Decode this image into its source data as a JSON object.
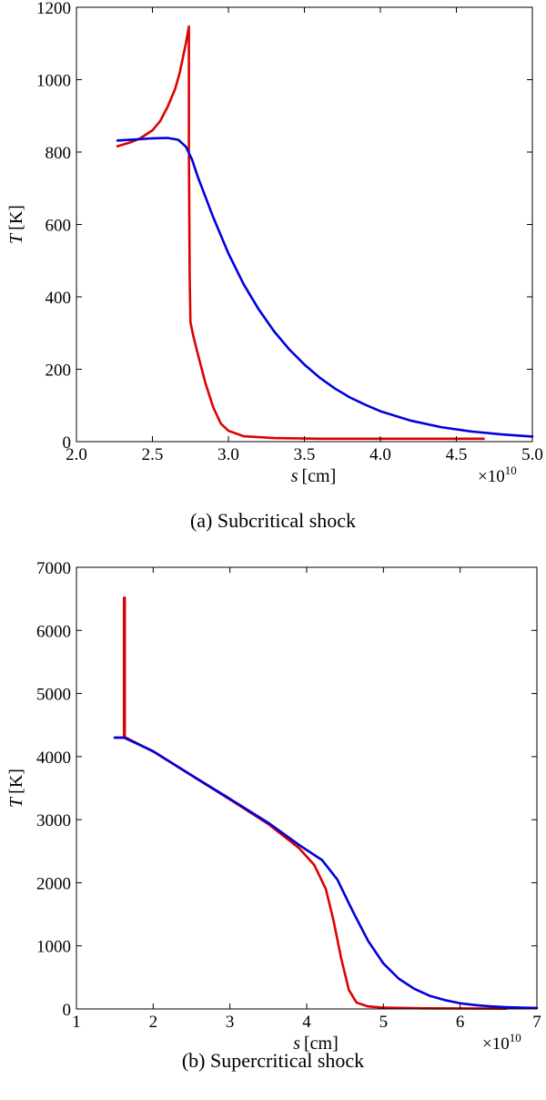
{
  "chart_data": [
    {
      "type": "line",
      "caption": "(a) Subcritical shock",
      "xlabel_var": "s",
      "xlabel_unit": "[cm]",
      "ylabel_var": "T",
      "ylabel_unit": "[K]",
      "x_multiplier": "×10",
      "x_multiplier_exp": "10",
      "xlim": [
        2.0,
        5.0
      ],
      "ylim": [
        0,
        1200
      ],
      "x_ticks": [
        "2.0",
        "2.5",
        "3.0",
        "3.5",
        "4.0",
        "4.5",
        "5.0"
      ],
      "y_ticks": [
        "0",
        "200",
        "400",
        "600",
        "800",
        "1000",
        "1200"
      ],
      "grid": false,
      "series": [
        {
          "color": "#dd0000",
          "points": [
            [
              2.27,
              816
            ],
            [
              2.35,
              826
            ],
            [
              2.42,
              838
            ],
            [
              2.5,
              860
            ],
            [
              2.55,
              885
            ],
            [
              2.6,
              925
            ],
            [
              2.65,
              975
            ],
            [
              2.68,
              1020
            ],
            [
              2.7,
              1060
            ],
            [
              2.72,
              1100
            ],
            [
              2.74,
              1147
            ],
            [
              2.74,
              800
            ],
            [
              2.745,
              460
            ],
            [
              2.75,
              330
            ],
            [
              2.77,
              290
            ],
            [
              2.8,
              240
            ],
            [
              2.85,
              160
            ],
            [
              2.9,
              95
            ],
            [
              2.95,
              50
            ],
            [
              3.0,
              30
            ],
            [
              3.1,
              15
            ],
            [
              3.3,
              10
            ],
            [
              3.6,
              8
            ],
            [
              4.0,
              8
            ],
            [
              4.4,
              8
            ],
            [
              4.68,
              8
            ]
          ]
        },
        {
          "color": "#0000dd",
          "points": [
            [
              2.27,
              832
            ],
            [
              2.4,
              835
            ],
            [
              2.5,
              838
            ],
            [
              2.6,
              839
            ],
            [
              2.67,
              834
            ],
            [
              2.72,
              815
            ],
            [
              2.76,
              780
            ],
            [
              2.8,
              730
            ],
            [
              2.9,
              620
            ],
            [
              3.0,
              520
            ],
            [
              3.1,
              435
            ],
            [
              3.2,
              365
            ],
            [
              3.3,
              305
            ],
            [
              3.4,
              255
            ],
            [
              3.5,
              213
            ],
            [
              3.6,
              177
            ],
            [
              3.7,
              147
            ],
            [
              3.8,
              122
            ],
            [
              3.9,
              102
            ],
            [
              4.0,
              84
            ],
            [
              4.2,
              58
            ],
            [
              4.4,
              40
            ],
            [
              4.6,
              28
            ],
            [
              4.8,
              20
            ],
            [
              5.0,
              14
            ]
          ]
        }
      ]
    },
    {
      "type": "line",
      "caption": "(b) Supercritical shock",
      "xlabel_var": "s",
      "xlabel_unit": "[cm]",
      "ylabel_var": "T",
      "ylabel_unit": "[K]",
      "x_multiplier": "×10",
      "x_multiplier_exp": "10",
      "xlim": [
        1,
        7
      ],
      "ylim": [
        0,
        7000
      ],
      "x_ticks": [
        "1",
        "2",
        "3",
        "4",
        "5",
        "6",
        "7"
      ],
      "y_ticks": [
        "0",
        "1000",
        "2000",
        "3000",
        "4000",
        "5000",
        "6000",
        "7000"
      ],
      "grid": false,
      "series": [
        {
          "color": "#dd0000",
          "points": [
            [
              1.5,
              4300
            ],
            [
              1.62,
              4300
            ],
            [
              1.62,
              6520
            ],
            [
              1.63,
              6520
            ],
            [
              1.63,
              4310
            ],
            [
              2.0,
              4080
            ],
            [
              2.5,
              3700
            ],
            [
              3.0,
              3320
            ],
            [
              3.5,
              2930
            ],
            [
              3.9,
              2550
            ],
            [
              4.1,
              2280
            ],
            [
              4.25,
              1900
            ],
            [
              4.35,
              1400
            ],
            [
              4.45,
              800
            ],
            [
              4.55,
              300
            ],
            [
              4.65,
              100
            ],
            [
              4.8,
              40
            ],
            [
              5.0,
              20
            ],
            [
              5.5,
              10
            ],
            [
              6.0,
              8
            ],
            [
              6.6,
              5
            ]
          ]
        },
        {
          "color": "#0000dd",
          "points": [
            [
              1.5,
              4300
            ],
            [
              1.62,
              4300
            ],
            [
              2.0,
              4085
            ],
            [
              2.5,
              3705
            ],
            [
              3.0,
              3330
            ],
            [
              3.5,
              2950
            ],
            [
              3.9,
              2600
            ],
            [
              4.2,
              2360
            ],
            [
              4.4,
              2050
            ],
            [
              4.6,
              1550
            ],
            [
              4.8,
              1080
            ],
            [
              5.0,
              720
            ],
            [
              5.2,
              480
            ],
            [
              5.4,
              320
            ],
            [
              5.6,
              210
            ],
            [
              5.8,
              140
            ],
            [
              6.0,
              90
            ],
            [
              6.2,
              60
            ],
            [
              6.4,
              40
            ],
            [
              6.6,
              28
            ],
            [
              6.8,
              20
            ],
            [
              7.0,
              15
            ]
          ]
        }
      ]
    }
  ]
}
